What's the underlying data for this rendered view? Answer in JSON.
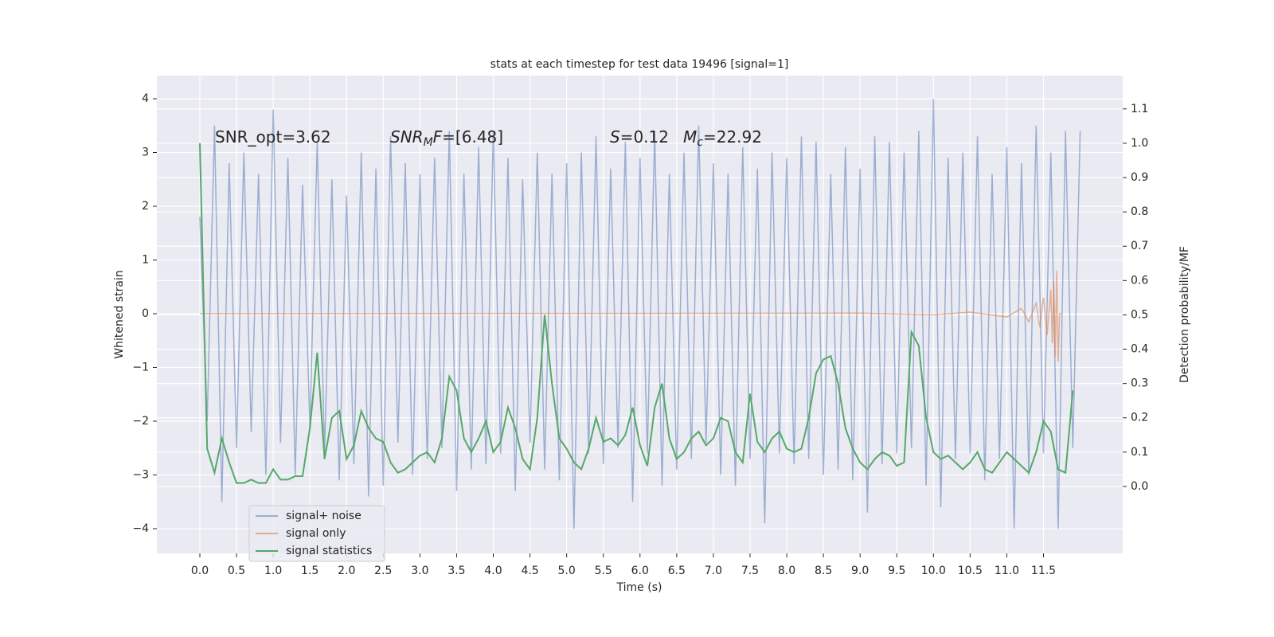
{
  "chart_data": {
    "type": "line",
    "title": "stats at each timestep for test data 19496 [signal=1]",
    "xlabel": "Time (s)",
    "ylabel": "Whitened strain",
    "y2label": "Detection probability/MF",
    "annotations": [
      {
        "text": "SNR_opt=3.62"
      },
      {
        "italic": "SNR",
        "sub": "M",
        "italic2": "F",
        "text": "=[6.48]"
      },
      {
        "italic": "S",
        "text": "=0.12"
      },
      {
        "italic": "M",
        "sub": "c",
        "text": "=22.92"
      }
    ],
    "x": [
      0,
      0.1,
      0.2,
      0.3,
      0.4,
      0.5,
      0.6,
      0.7,
      0.8,
      0.9,
      1.0,
      1.1,
      1.2,
      1.3,
      1.4,
      1.5,
      1.6,
      1.7,
      1.8,
      1.9,
      2.0,
      2.1,
      2.2,
      2.3,
      2.4,
      2.5,
      2.6,
      2.7,
      2.8,
      2.9,
      3.0,
      3.1,
      3.2,
      3.3,
      3.4,
      3.5,
      3.6,
      3.7,
      3.8,
      3.9,
      4.0,
      4.1,
      4.2,
      4.3,
      4.4,
      4.5,
      4.6,
      4.7,
      4.8,
      4.9,
      5.0,
      5.1,
      5.2,
      5.3,
      5.4,
      5.5,
      5.6,
      5.7,
      5.8,
      5.9,
      6.0,
      6.1,
      6.2,
      6.3,
      6.4,
      6.5,
      6.6,
      6.7,
      6.8,
      6.9,
      7.0,
      7.1,
      7.2,
      7.3,
      7.4,
      7.5,
      7.6,
      7.7,
      7.8,
      7.9,
      8.0,
      8.1,
      8.2,
      8.3,
      8.4,
      8.5,
      8.6,
      8.7,
      8.8,
      8.9,
      9.0,
      9.1,
      9.2,
      9.3,
      9.4,
      9.5,
      9.6,
      9.7,
      9.8,
      9.9,
      10.0,
      10.1,
      10.2,
      10.3,
      10.4,
      10.5,
      10.6,
      10.7,
      10.8,
      10.9,
      11.0,
      11.1,
      11.2,
      11.3,
      11.4,
      11.5,
      11.6,
      11.7,
      11.8,
      11.9,
      12.0
    ],
    "series": [
      {
        "name": "signal+ noise",
        "color": "#4c72b0",
        "opacity": 0.5,
        "values": [
          1.8,
          -2.0,
          3.5,
          -3.5,
          2.8,
          -2.5,
          3.0,
          -2.2,
          2.6,
          -3.0,
          3.8,
          -2.4,
          2.9,
          -3.0,
          2.4,
          -2.1,
          3.2,
          -2.6,
          2.5,
          -3.1,
          2.2,
          -2.8,
          3.0,
          -3.4,
          2.7,
          -3.2,
          3.3,
          -2.4,
          2.8,
          -3.0,
          2.6,
          -2.7,
          2.9,
          -2.5,
          3.4,
          -3.3,
          2.6,
          -2.9,
          3.1,
          -2.8,
          3.4,
          -2.6,
          2.9,
          -3.3,
          2.5,
          -2.4,
          3.0,
          -2.9,
          2.6,
          -3.1,
          2.8,
          -4.0,
          3.0,
          -2.6,
          3.3,
          -2.8,
          2.7,
          -2.5,
          3.2,
          -3.5,
          2.9,
          -2.6,
          3.4,
          -3.2,
          2.6,
          -2.9,
          3.0,
          -2.7,
          3.5,
          -2.4,
          2.8,
          -3.0,
          2.6,
          -3.2,
          3.1,
          -2.7,
          2.7,
          -3.9,
          3.0,
          -2.6,
          2.9,
          -2.8,
          3.3,
          -2.7,
          3.2,
          -3.0,
          2.6,
          -2.9,
          3.1,
          -3.1,
          2.7,
          -3.7,
          3.3,
          -2.8,
          3.2,
          -2.6,
          3.0,
          -2.5,
          3.4,
          -3.2,
          4.0,
          -3.6,
          2.9,
          -2.7,
          3.0,
          -2.6,
          3.3,
          -3.1,
          2.6,
          -2.7,
          3.1,
          -4.0,
          2.8,
          -3.0,
          3.5,
          -2.6,
          3.0,
          -4.0,
          3.4,
          -2.5,
          3.4
        ]
      },
      {
        "name": "signal only",
        "color": "#dd8452",
        "opacity": 0.6,
        "x": [
          0,
          9.0,
          10.0,
          10.5,
          11.0,
          11.2,
          11.3,
          11.4,
          11.45,
          11.5,
          11.55,
          11.6,
          11.62,
          11.64,
          11.66,
          11.68,
          11.7,
          11.72,
          11.75
        ],
        "values": [
          0,
          0.01,
          -0.02,
          0.03,
          -0.06,
          0.1,
          -0.15,
          0.2,
          -0.25,
          0.3,
          -0.4,
          0.45,
          -0.55,
          0.6,
          -0.8,
          0.8,
          -0.9,
          0,
          0
        ]
      },
      {
        "name": "signal statistics",
        "color": "#55a868",
        "opacity": 1,
        "axis": "y2",
        "values": [
          1.0,
          0.11,
          0.04,
          0.14,
          0.07,
          0.01,
          0.01,
          0.02,
          0.01,
          0.01,
          0.05,
          0.02,
          0.02,
          0.03,
          0.03,
          0.17,
          0.39,
          0.08,
          0.2,
          0.22,
          0.08,
          0.12,
          0.22,
          0.17,
          0.14,
          0.13,
          0.07,
          0.04,
          0.05,
          0.07,
          0.09,
          0.1,
          0.07,
          0.14,
          0.32,
          0.28,
          0.14,
          0.1,
          0.14,
          0.19,
          0.1,
          0.13,
          0.23,
          0.17,
          0.08,
          0.05,
          0.2,
          0.5,
          0.3,
          0.14,
          0.11,
          0.07,
          0.05,
          0.11,
          0.2,
          0.13,
          0.14,
          0.12,
          0.15,
          0.23,
          0.12,
          0.06,
          0.23,
          0.3,
          0.14,
          0.08,
          0.1,
          0.14,
          0.16,
          0.12,
          0.14,
          0.2,
          0.19,
          0.1,
          0.07,
          0.27,
          0.13,
          0.1,
          0.14,
          0.16,
          0.11,
          0.1,
          0.11,
          0.2,
          0.33,
          0.37,
          0.38,
          0.3,
          0.17,
          0.11,
          0.07,
          0.05,
          0.08,
          0.1,
          0.09,
          0.06,
          0.07,
          0.45,
          0.41,
          0.2,
          0.1,
          0.08,
          0.09,
          0.07,
          0.05,
          0.07,
          0.1,
          0.05,
          0.04,
          0.07,
          0.1,
          0.08,
          0.06,
          0.04,
          0.1,
          0.19,
          0.16,
          0.05,
          0.04,
          0.28,
          null
        ]
      }
    ],
    "xlim": [
      -0.586,
      12.58
    ],
    "xticks": [
      {
        "value": 0,
        "label": "0.0"
      },
      0.5,
      {
        "value": 1,
        "label": "1.0"
      },
      1.5,
      {
        "value": 2,
        "label": "2.0"
      },
      2.5,
      {
        "value": 3,
        "label": "3.0"
      },
      3.5,
      {
        "value": 4,
        "label": "4.0"
      },
      4.5,
      {
        "value": 5,
        "label": "5.0"
      },
      5.5,
      {
        "value": 6,
        "label": "6.0"
      },
      6.5,
      {
        "value": 7,
        "label": "7.0"
      },
      7.5,
      {
        "value": 8,
        "label": "8.0"
      },
      8.5,
      {
        "value": 9,
        "label": "9.0"
      },
      9.5,
      {
        "value": 10,
        "label": "10.0"
      },
      10.5,
      {
        "value": 11,
        "label": "11.0"
      },
      11.5
    ],
    "ylim": [
      -4.46,
      4.43
    ],
    "yticks": [
      {
        "value": -4,
        "label": "−4"
      },
      {
        "value": -3,
        "label": "−3"
      },
      {
        "value": -2,
        "label": "−2"
      },
      {
        "value": -1,
        "label": "−1"
      },
      0,
      1,
      2,
      3,
      4
    ],
    "y2lim": [
      -0.195,
      1.197
    ],
    "y2ticks": [
      {
        "value": 0,
        "label": "0.0"
      },
      0.1,
      0.2,
      0.3,
      0.4,
      0.5,
      0.6,
      0.7,
      0.8,
      0.9,
      {
        "value": 1,
        "label": "1.0"
      },
      1.1
    ],
    "grid": true,
    "legend": "lower left"
  }
}
